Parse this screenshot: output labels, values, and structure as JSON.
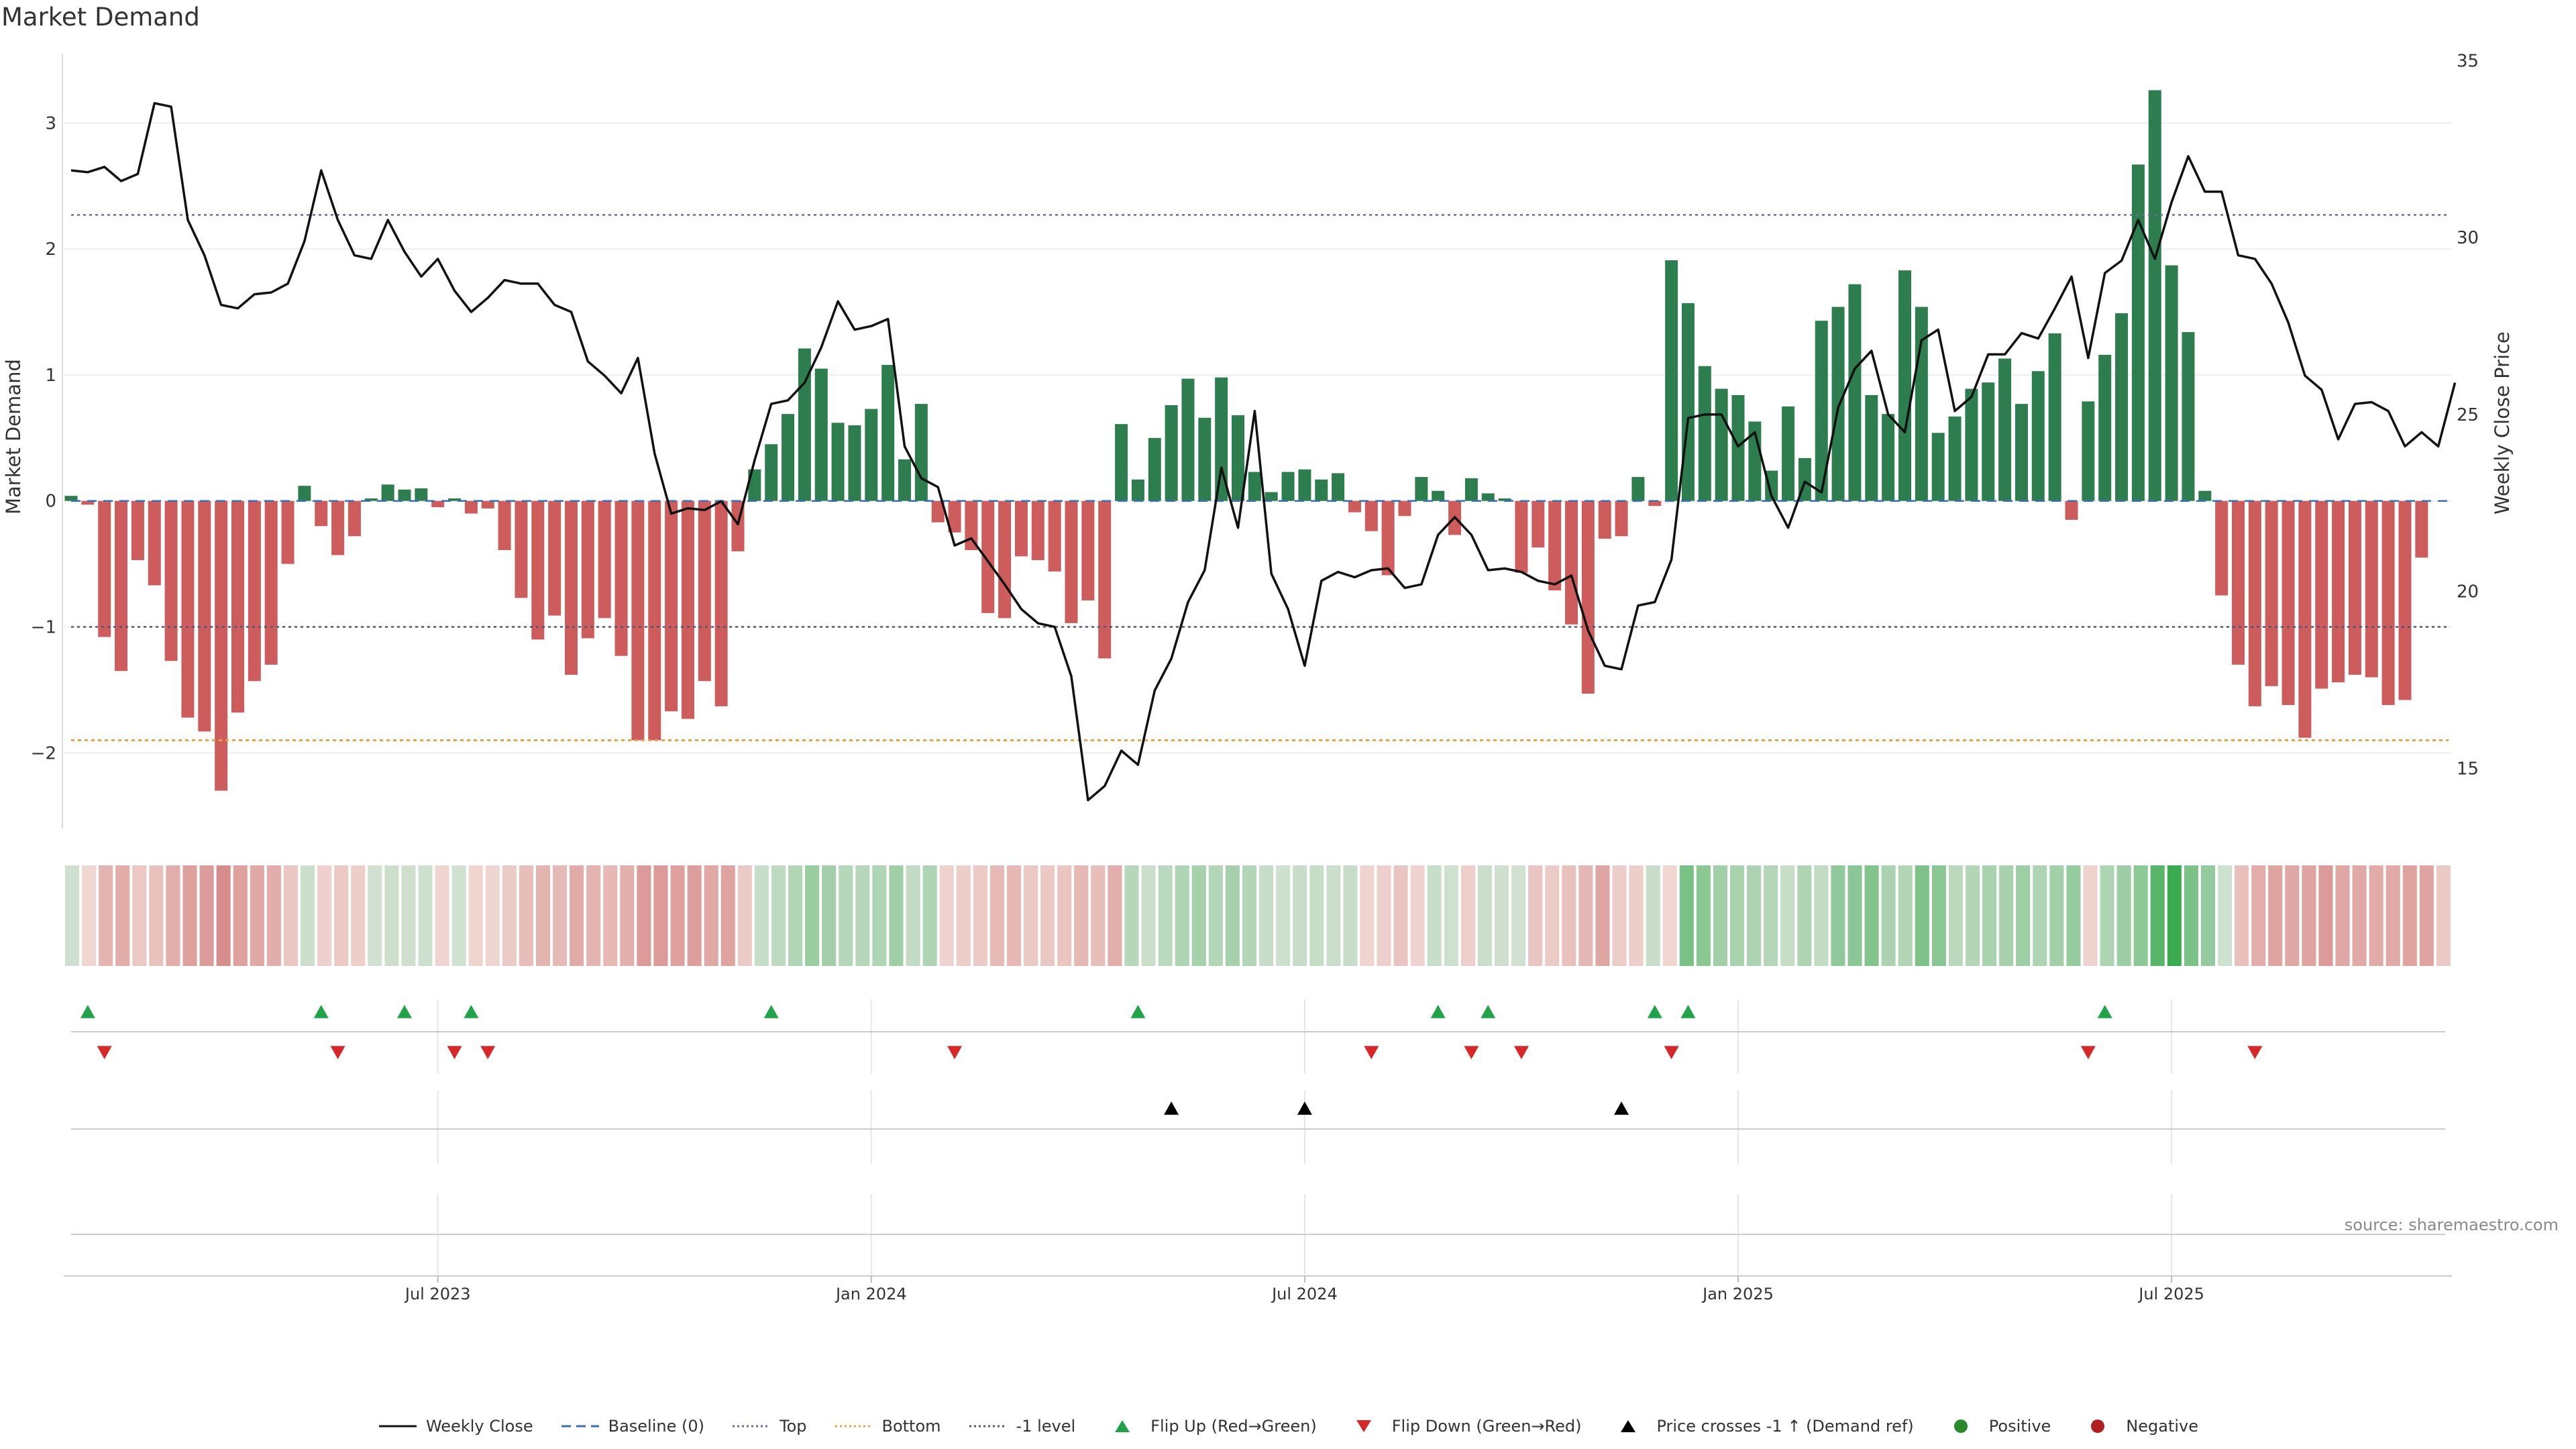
{
  "title": "Market Demand",
  "source": "source: sharemaestro.com",
  "colors": {
    "positive": "#2e7d4f",
    "negative": "#cd5c5c",
    "price": "#111111",
    "baseline": "#3a6fb5",
    "top": "#6a6aa0",
    "bottom": "#e8a24a",
    "minus1": "#555577",
    "flip_up": "#22a34a",
    "flip_down": "#d62828"
  },
  "chart_data": {
    "type": "bar+line",
    "x_axis": {
      "tick_labels": [
        "Jul 2023",
        "Jan 2024",
        "Jul 2024",
        "Jan 2025",
        "Jul 2025"
      ],
      "tick_index": [
        22,
        48,
        74,
        100,
        126
      ]
    },
    "left_axis": {
      "label": "Market Demand",
      "ylim": [
        -2.6,
        3.55
      ],
      "ticks": [
        -2,
        -1,
        0,
        1,
        2,
        3
      ],
      "tick_labels": [
        "−2",
        "−1",
        "0",
        "1",
        "2",
        "3"
      ]
    },
    "right_axis": {
      "label": "Weekly Close Price",
      "ylim": [
        13.3,
        35.2
      ],
      "ticks": [
        15,
        20,
        25,
        30,
        35
      ],
      "tick_labels": [
        "15",
        "20",
        "25",
        "30",
        "35"
      ]
    },
    "reference_lines": {
      "top": 2.27,
      "bottom": -1.9,
      "minus1": -1.0,
      "baseline": 0
    },
    "demand": [
      0.04,
      -0.03,
      -1.08,
      -1.35,
      -0.47,
      -0.67,
      -1.27,
      -1.72,
      -1.83,
      -2.3,
      -1.68,
      -1.43,
      -1.3,
      -0.5,
      0.12,
      -0.2,
      -0.43,
      -0.28,
      0.02,
      0.13,
      0.09,
      0.1,
      -0.05,
      0.02,
      -0.1,
      -0.06,
      -0.39,
      -0.77,
      -1.1,
      -0.91,
      -1.38,
      -1.09,
      -0.93,
      -1.23,
      -1.9,
      -1.9,
      -1.67,
      -1.73,
      -1.43,
      -1.63,
      -0.4,
      0.25,
      0.45,
      0.69,
      1.21,
      1.05,
      0.62,
      0.6,
      0.73,
      1.08,
      0.33,
      0.77,
      -0.17,
      -0.25,
      -0.39,
      -0.89,
      -0.93,
      -0.44,
      -0.47,
      -0.56,
      -0.97,
      -0.79,
      -1.25,
      0.61,
      0.17,
      0.5,
      0.76,
      0.97,
      0.66,
      0.98,
      0.68,
      0.23,
      0.07,
      0.23,
      0.25,
      0.17,
      0.22,
      -0.09,
      -0.24,
      -0.59,
      -0.12,
      0.19,
      0.08,
      -0.27,
      0.18,
      0.06,
      0.02,
      -0.57,
      -0.37,
      -0.71,
      -0.98,
      -1.53,
      -0.3,
      -0.28,
      0.19,
      -0.04,
      1.91,
      1.57,
      1.07,
      0.89,
      0.84,
      0.63,
      0.24,
      0.75,
      0.34,
      1.43,
      1.54,
      1.72,
      0.84,
      0.69,
      1.83,
      1.54,
      0.54,
      0.67,
      0.89,
      0.94,
      1.13,
      0.77,
      1.03,
      1.33,
      -0.15,
      0.79,
      1.16,
      1.49,
      2.67,
      3.26,
      1.87,
      1.34,
      0.08,
      -0.75,
      -1.3,
      -1.63,
      -1.47,
      -1.62,
      -1.88,
      -1.49,
      -1.44,
      -1.38,
      -1.4,
      -1.62,
      -1.58,
      -0.45
    ],
    "price": [
      31.9,
      31.85,
      32,
      31.6,
      31.8,
      33.8,
      33.7,
      30.5,
      29.5,
      28.1,
      28,
      28.4,
      28.45,
      28.7,
      29.9,
      31.9,
      30.5,
      29.5,
      29.4,
      30.5,
      29.6,
      28.9,
      29.4,
      28.5,
      27.9,
      28.3,
      28.8,
      28.7,
      28.7,
      28.1,
      27.9,
      26.5,
      26.1,
      25.6,
      26.6,
      23.9,
      22.2,
      22.35,
      22.3,
      22.55,
      21.9,
      23.7,
      25.3,
      25.4,
      25.9,
      26.9,
      28.2,
      27.4,
      27.5,
      27.7,
      24.1,
      23.2,
      22.95,
      21.3,
      21.5,
      20.85,
      20.2,
      19.5,
      19.1,
      19,
      17.6,
      14.1,
      14.5,
      15.5,
      15.1,
      17.2,
      18.1,
      19.7,
      20.6,
      23.5,
      21.8,
      25.1,
      20.5,
      19.5,
      17.9,
      20.3,
      20.55,
      20.4,
      20.6,
      20.65,
      20.1,
      20.2,
      21.6,
      22.1,
      21.6,
      20.6,
      20.65,
      20.55,
      20.3,
      20.2,
      20.45,
      18.9,
      17.9,
      17.8,
      19.6,
      19.7,
      20.9,
      24.9,
      25,
      25,
      24.1,
      24.5,
      22.7,
      21.8,
      23.1,
      22.8,
      25.2,
      26.3,
      26.8,
      25,
      24.5,
      27.1,
      27.4,
      25.1,
      25.5,
      26.7,
      26.7,
      27.3,
      27.15,
      28,
      28.9,
      26.6,
      29,
      29.35,
      30.5,
      29.4,
      31,
      32.3,
      31.3,
      31.3,
      29.5,
      29.4,
      28.7,
      27.6,
      26.1,
      25.7,
      24.3,
      25.3,
      25.35,
      25.1,
      24.1,
      24.5,
      24.1,
      25.9
    ],
    "flip_up_index": [
      1,
      15,
      20,
      24,
      42,
      64,
      82,
      85,
      95,
      97,
      122
    ],
    "flip_down_index": [
      2,
      16,
      23,
      25,
      53,
      78,
      84,
      87,
      96,
      121,
      131
    ],
    "price_cross_index": [
      66,
      74,
      93
    ]
  },
  "legend": [
    {
      "label": "Weekly Close",
      "icon": "solid-line-icon"
    },
    {
      "label": "Baseline (0)",
      "icon": "dashed-line-icon"
    },
    {
      "label": "Top",
      "icon": "dotted-line-icon"
    },
    {
      "label": "Bottom",
      "icon": "dotted-line-icon"
    },
    {
      "label": "-1 level",
      "icon": "dotted-line-icon"
    },
    {
      "label": "Flip Up (Red→Green)",
      "icon": "triangle-up-icon"
    },
    {
      "label": "Flip Down (Green→Red)",
      "icon": "triangle-down-icon"
    },
    {
      "label": "Price crosses -1 ↑ (Demand ref)",
      "icon": "triangle-up-icon"
    },
    {
      "label": "Positive",
      "icon": "circle-icon"
    },
    {
      "label": "Negative",
      "icon": "circle-icon"
    }
  ]
}
